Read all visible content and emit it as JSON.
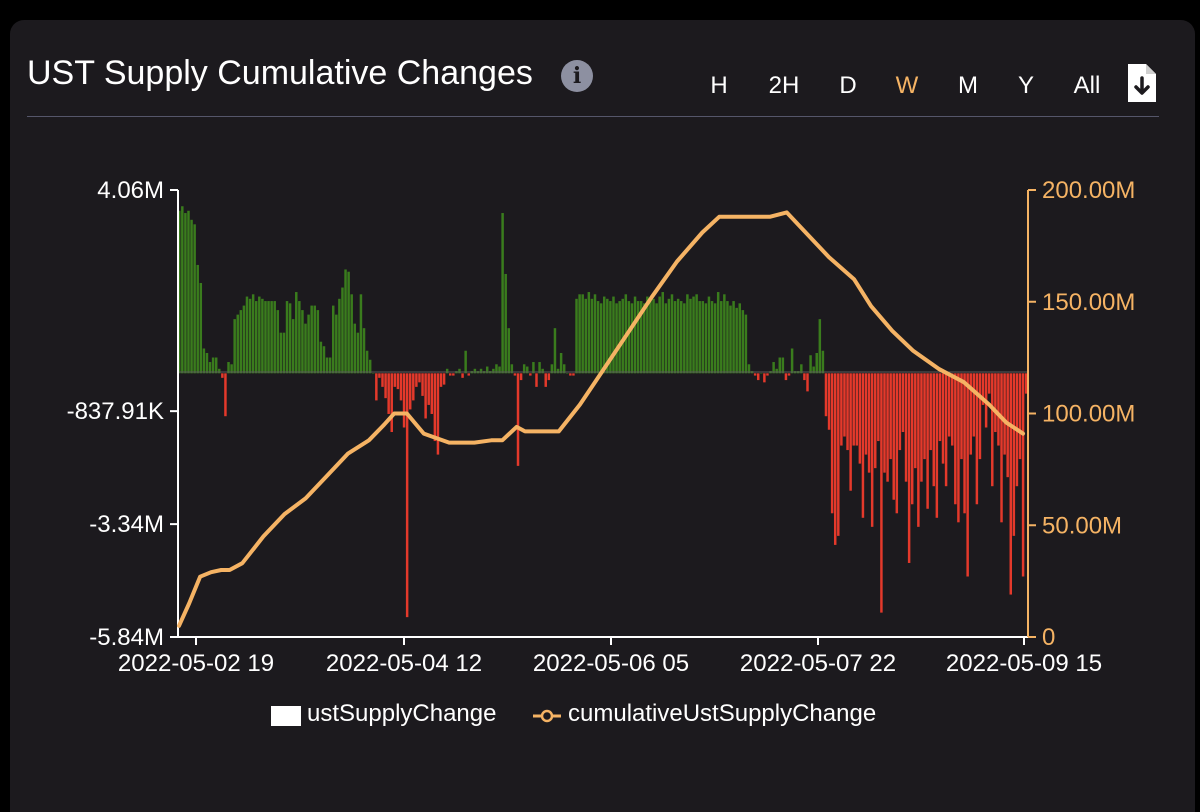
{
  "header": {
    "title": "UST Supply Cumulative Changes",
    "info_icon": "info-icon",
    "download_icon": "download-icon"
  },
  "range_buttons": [
    {
      "label": "H",
      "active": false
    },
    {
      "label": "2H",
      "active": false
    },
    {
      "label": "D",
      "active": false
    },
    {
      "label": "W",
      "active": true
    },
    {
      "label": "M",
      "active": false
    },
    {
      "label": "Y",
      "active": false
    },
    {
      "label": "All",
      "active": false
    }
  ],
  "colors": {
    "background": "#1c1a1e",
    "positive_bar": "#3a7c1d",
    "negative_bar": "#e4392b",
    "line": "#f5b364",
    "active_button": "#f5b364"
  },
  "legend": [
    {
      "label": "ustSupplyChange",
      "symbol": "square"
    },
    {
      "label": "cumulativeUstSupplyChange",
      "symbol": "line-circle"
    }
  ],
  "chart_data": {
    "type": "bar",
    "title": "UST Supply Cumulative Changes",
    "grid": false,
    "legend_position": "bottom",
    "x_ticks": [
      "2022-05-02 19",
      "2022-05-04 12",
      "2022-05-06 05",
      "2022-05-07 22",
      "2022-05-09 15"
    ],
    "y_left_ticks": [
      "4.06M",
      "-837.91K",
      "-3.34M",
      "-5.84M"
    ],
    "y_right_ticks": [
      "200.00M",
      "150.00M",
      "100.00M",
      "50.00M",
      "0"
    ],
    "y_left_range": [
      -5840000,
      4060000
    ],
    "y_right_range": [
      0,
      200000000
    ],
    "series": [
      {
        "name": "ustSupplyChange",
        "type": "bar",
        "axis": "left",
        "values": [
          3.6,
          3.7,
          3.55,
          3.6,
          3.4,
          3.3,
          2.4,
          2.0,
          0.55,
          0.45,
          0.25,
          0.35,
          0.35,
          0.1,
          -0.1,
          -0.95,
          0.25,
          0.2,
          1.2,
          1.3,
          1.4,
          1.5,
          1.7,
          1.65,
          1.75,
          1.6,
          1.7,
          1.65,
          1.6,
          1.6,
          1.6,
          1.6,
          1.4,
          0.9,
          0.9,
          1.6,
          1.55,
          1.2,
          1.8,
          1.6,
          1.4,
          1.1,
          1.3,
          1.5,
          1.5,
          1.4,
          0.7,
          0.6,
          0.35,
          0.35,
          1.5,
          1.3,
          1.65,
          1.9,
          2.3,
          2.25,
          1.75,
          1.1,
          0.9,
          1.75,
          1.0,
          0.5,
          0.3,
          0.0,
          -0.6,
          -0.1,
          -0.3,
          -0.55,
          -0.9,
          -1.3,
          -0.3,
          -0.35,
          -0.6,
          -1.2,
          -5.4,
          -0.8,
          -0.6,
          -0.3,
          -0.2,
          -0.5,
          -1.0,
          -0.7,
          -0.9,
          -1.5,
          -1.8,
          -0.3,
          -0.25,
          0.1,
          -0.05,
          -0.05,
          0.05,
          0.1,
          -0.1,
          0.5,
          -0.05,
          0.05,
          0.1,
          0.05,
          0.1,
          0.05,
          0.15,
          0.05,
          0.1,
          0.2,
          0.15,
          3.55,
          2.2,
          1.0,
          0.2,
          -0.05,
          -2.05,
          -0.15,
          0.2,
          0.15,
          -0.05,
          0.25,
          -0.3,
          0.25,
          0.1,
          -0.3,
          -0.15,
          0.2,
          1.0,
          0.1,
          0.45,
          0.2,
          0.0,
          -0.05,
          -0.05,
          1.65,
          1.75,
          1.75,
          1.65,
          1.8,
          1.65,
          1.75,
          1.6,
          1.55,
          1.7,
          1.65,
          1.6,
          1.7,
          1.55,
          1.6,
          1.65,
          1.75,
          1.6,
          1.55,
          1.7,
          1.6,
          1.6,
          1.55,
          1.7,
          1.6,
          1.65,
          1.55,
          1.7,
          1.8,
          1.55,
          1.65,
          1.75,
          1.6,
          1.65,
          1.6,
          1.55,
          1.75,
          1.65,
          1.7,
          1.75,
          1.6,
          1.6,
          1.55,
          1.7,
          1.6,
          1.55,
          1.8,
          1.6,
          1.75,
          1.6,
          1.5,
          1.6,
          1.45,
          1.55,
          1.4,
          1.3,
          0.2,
          0.05,
          -0.05,
          -0.15,
          0.0,
          -0.2,
          -0.05,
          0.05,
          0.25,
          0.1,
          0.35,
          0.35,
          -0.15,
          -0.05,
          0.55,
          0.05,
          0.05,
          0.2,
          -0.15,
          -0.4,
          0.4,
          0.15,
          0.45,
          1.2,
          0.5,
          -0.95,
          -1.25,
          -3.1,
          -3.8,
          -3.6,
          -1.6,
          -1.4,
          -1.7,
          -2.6,
          -1.6,
          -1.6,
          -2.0,
          -3.2,
          -1.8,
          -2.2,
          -3.4,
          -2.1,
          -1.5,
          -5.3,
          -2.2,
          -2.4,
          -1.9,
          -2.8,
          -3.1,
          -1.7,
          -1.3,
          -2.4,
          -4.2,
          -2.9,
          -2.1,
          -3.4,
          -2.4,
          -1.9,
          -3.0,
          -1.7,
          -2.5,
          -3.2,
          -1.5,
          -2.0,
          -2.5,
          -1.4,
          -1.6,
          -2.9,
          -3.3,
          -1.9,
          -3.1,
          -4.5,
          -1.8,
          -1.4,
          -2.9,
          -1.9,
          -0.7,
          -1.2,
          -0.45,
          -2.5,
          -1.3,
          -1.6,
          -3.3,
          -1.8,
          -2.3,
          -4.9,
          -3.6,
          -2.5,
          -1.9,
          -4.5,
          -0.45
        ]
      },
      {
        "name": "cumulativeUstSupplyChange",
        "type": "line",
        "axis": "right",
        "points": [
          {
            "t": 0.0,
            "v": 5
          },
          {
            "t": 0.012,
            "v": 15
          },
          {
            "t": 0.025,
            "v": 27
          },
          {
            "t": 0.038,
            "v": 29
          },
          {
            "t": 0.05,
            "v": 30
          },
          {
            "t": 0.06,
            "v": 30
          },
          {
            "t": 0.075,
            "v": 33
          },
          {
            "t": 0.1,
            "v": 45
          },
          {
            "t": 0.125,
            "v": 55
          },
          {
            "t": 0.15,
            "v": 62
          },
          {
            "t": 0.175,
            "v": 72
          },
          {
            "t": 0.2,
            "v": 82
          },
          {
            "t": 0.225,
            "v": 88
          },
          {
            "t": 0.243,
            "v": 95
          },
          {
            "t": 0.255,
            "v": 100
          },
          {
            "t": 0.27,
            "v": 100
          },
          {
            "t": 0.29,
            "v": 91
          },
          {
            "t": 0.305,
            "v": 89
          },
          {
            "t": 0.32,
            "v": 87
          },
          {
            "t": 0.35,
            "v": 87
          },
          {
            "t": 0.37,
            "v": 88
          },
          {
            "t": 0.383,
            "v": 88
          },
          {
            "t": 0.4,
            "v": 94
          },
          {
            "t": 0.41,
            "v": 92
          },
          {
            "t": 0.425,
            "v": 92
          },
          {
            "t": 0.45,
            "v": 92
          },
          {
            "t": 0.475,
            "v": 104
          },
          {
            "t": 0.5,
            "v": 118
          },
          {
            "t": 0.53,
            "v": 135
          },
          {
            "t": 0.56,
            "v": 152
          },
          {
            "t": 0.59,
            "v": 168
          },
          {
            "t": 0.62,
            "v": 181
          },
          {
            "t": 0.64,
            "v": 188
          },
          {
            "t": 0.7,
            "v": 188
          },
          {
            "t": 0.72,
            "v": 190
          },
          {
            "t": 0.745,
            "v": 180
          },
          {
            "t": 0.77,
            "v": 170
          },
          {
            "t": 0.8,
            "v": 160
          },
          {
            "t": 0.82,
            "v": 148
          },
          {
            "t": 0.845,
            "v": 137
          },
          {
            "t": 0.87,
            "v": 128
          },
          {
            "t": 0.9,
            "v": 120
          },
          {
            "t": 0.93,
            "v": 114
          },
          {
            "t": 0.96,
            "v": 104
          },
          {
            "t": 0.98,
            "v": 96
          },
          {
            "t": 1.0,
            "v": 91
          }
        ]
      }
    ]
  }
}
